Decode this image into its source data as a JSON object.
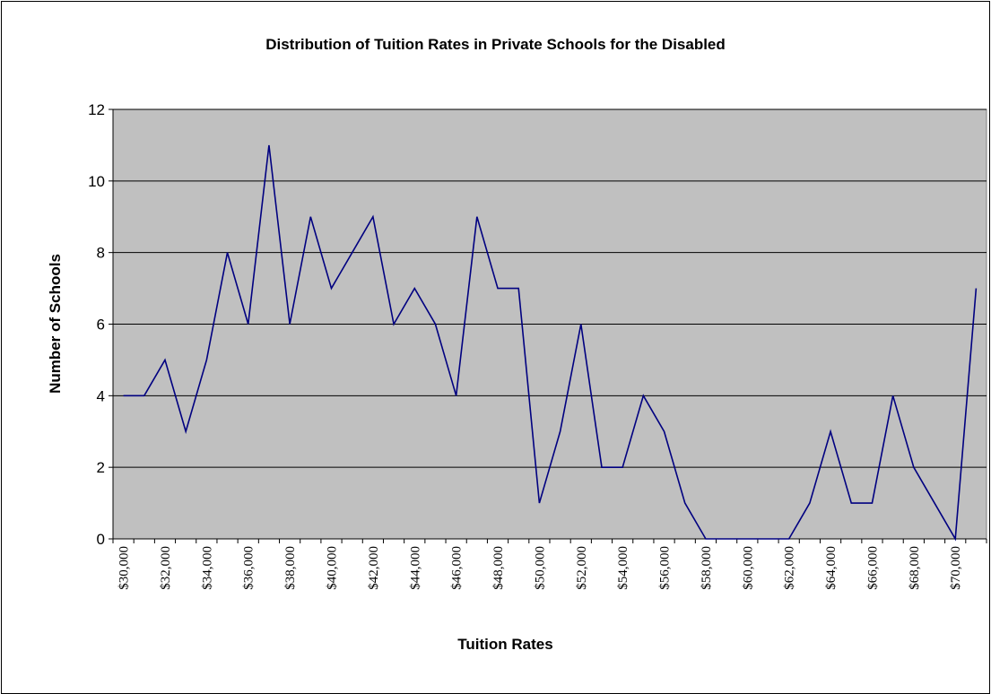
{
  "chart_data": {
    "type": "line",
    "title": "Distribution of Tuition Rates in Private Schools for the Disabled",
    "xlabel": "Tuition Rates",
    "ylabel": "Number of Schools",
    "ylim": [
      0,
      12
    ],
    "yticks": [
      "0",
      "2",
      "4",
      "6",
      "8",
      "10",
      "12"
    ],
    "grid": "horizontal",
    "legend": "none",
    "x": [
      "$30,000",
      "$31,000",
      "$32,000",
      "$33,000",
      "$34,000",
      "$35,000",
      "$36,000",
      "$37,000",
      "$38,000",
      "$39,000",
      "$40,000",
      "$41,000",
      "$42,000",
      "$43,000",
      "$44,000",
      "$45,000",
      "$46,000",
      "$47,000",
      "$48,000",
      "$49,000",
      "$50,000",
      "$51,000",
      "$52,000",
      "$53,000",
      "$54,000",
      "$55,000",
      "$56,000",
      "$57,000",
      "$58,000",
      "$59,000",
      "$60,000",
      "$61,000",
      "$62,000",
      "$63,000",
      "$64,000",
      "$65,000",
      "$66,000",
      "$67,000",
      "$68,000",
      "$69,000",
      "$70,000",
      "$71,000"
    ],
    "x_tick_labels": [
      "$30,000",
      "$32,000",
      "$34,000",
      "$36,000",
      "$38,000",
      "$40,000",
      "$42,000",
      "$44,000",
      "$46,000",
      "$48,000",
      "$50,000",
      "$52,000",
      "$54,000",
      "$56,000",
      "$58,000",
      "$60,000",
      "$62,000",
      "$64,000",
      "$66,000",
      "$68,000",
      "$70,000"
    ],
    "series": [
      {
        "values": [
          4,
          4,
          5,
          3,
          5,
          8,
          6,
          11,
          6,
          9,
          7,
          8,
          9,
          6,
          7,
          6,
          4,
          9,
          7,
          7,
          1,
          3,
          6,
          2,
          2,
          4,
          3,
          1,
          0,
          0,
          0,
          0,
          0,
          1,
          3,
          1,
          1,
          4,
          2,
          1,
          0,
          7
        ]
      }
    ],
    "colors": {
      "plot_background": "#c0c0c0",
      "line": "#000080",
      "gridline": "#000000"
    }
  }
}
